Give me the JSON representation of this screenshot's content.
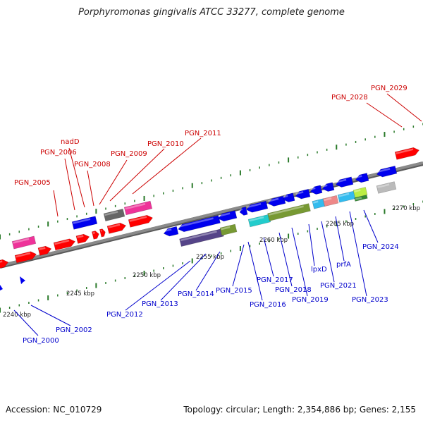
{
  "title": "Porphyromonas gingivalis ATCC 33277, complete genome",
  "footer": {
    "accession": "Accession: NC_010729",
    "summary": "Topology: circular; Length: 2,354,886 bp; Genes: 2,155"
  },
  "colors": {
    "backbone": "#8a8a8a",
    "tick": "#2a7a2a",
    "label_top": "#cc0000",
    "label_bottom": "#0000cc",
    "red": "#ff0000",
    "blue": "#0000ee",
    "magenta": "#ee3399",
    "gray": "#666666",
    "light_gray": "#bbbbbb",
    "cyan": "#22cccc",
    "olive": "#779933",
    "purple": "#554488",
    "salmon": "#ee8888",
    "sky": "#33bbee",
    "lime": "#bbee44",
    "green": "#338833"
  },
  "kbp_labels": [
    "2240 kbp",
    "2245 kbp",
    "2250 kbp",
    "2255 kbp",
    "2260 kbp",
    "2265 kbp",
    "2270 kbp"
  ],
  "top_labels": [
    "PGN_2005",
    "PGN_2006",
    "nadD",
    "PGN_2008",
    "PGN_2009",
    "PGN_2010",
    "PGN_2011",
    "PGN_2028",
    "PGN_2029"
  ],
  "bottom_labels": [
    "PGN_2000",
    "PGN_2002",
    "PGN_2012",
    "PGN_2013",
    "PGN_2014",
    "PGN_2015",
    "PGN_2016",
    "PGN_2017",
    "PGN_2018",
    "PGN_2019",
    "lpxD",
    "PGN_2021",
    "prfA",
    "PGN_2023",
    "PGN_2024"
  ]
}
